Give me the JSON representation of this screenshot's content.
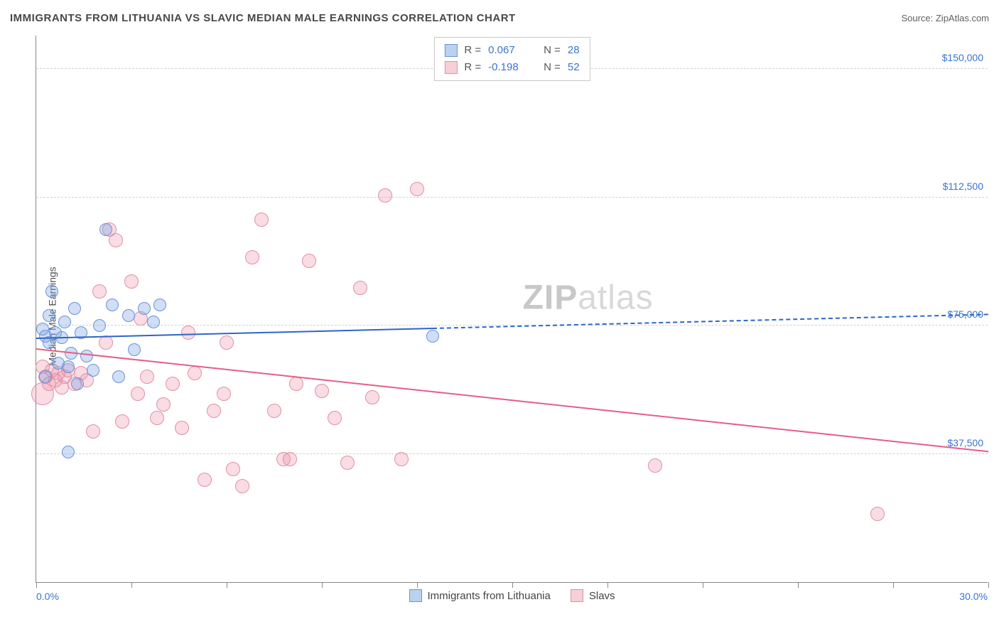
{
  "header": {
    "title": "IMMIGRANTS FROM LITHUANIA VS SLAVIC MEDIAN MALE EARNINGS CORRELATION CHART",
    "source": "Source: ZipAtlas.com"
  },
  "ylabel": "Median Male Earnings",
  "watermark_bold": "ZIP",
  "watermark_rest": "atlas",
  "chart": {
    "type": "scatter",
    "background_color": "#ffffff",
    "grid_color": "#d0d0d0",
    "axis_color": "#888888",
    "tick_label_color": "#3b73d1",
    "x": {
      "min": 0.0,
      "max": 30.0,
      "label_min": "0.0%",
      "label_max": "30.0%",
      "tick_step": 3.0
    },
    "y": {
      "min": 0,
      "max": 160000,
      "gridlines": [
        {
          "value": 37500,
          "label": "$37,500"
        },
        {
          "value": 75000,
          "label": "$75,000"
        },
        {
          "value": 112500,
          "label": "$112,500"
        },
        {
          "value": 150000,
          "label": "$150,000"
        }
      ]
    },
    "series": [
      {
        "id": "lithuania",
        "label": "Immigrants from Lithuania",
        "fill_color": "rgba(120,160,230,0.35)",
        "stroke_color": "#6a93d8",
        "swatch_fill": "#bcd1f0",
        "swatch_border": "#6a93d8",
        "marker_radius": 9,
        "R": "0.067",
        "N": "28",
        "trend": {
          "color": "#2e65c9",
          "width": 2,
          "y_at_xmin": 71000,
          "y_at_xmax": 78000,
          "solid_until_x": 12.5
        },
        "points": [
          {
            "x": 0.2,
            "y": 74000
          },
          {
            "x": 0.3,
            "y": 72000
          },
          {
            "x": 0.4,
            "y": 70000
          },
          {
            "x": 0.4,
            "y": 78000
          },
          {
            "x": 0.5,
            "y": 85000
          },
          {
            "x": 0.6,
            "y": 73000
          },
          {
            "x": 0.7,
            "y": 64000
          },
          {
            "x": 0.8,
            "y": 71500
          },
          {
            "x": 0.9,
            "y": 76000
          },
          {
            "x": 1.0,
            "y": 63000
          },
          {
            "x": 1.1,
            "y": 67000
          },
          {
            "x": 1.2,
            "y": 80000
          },
          {
            "x": 1.3,
            "y": 58000
          },
          {
            "x": 1.4,
            "y": 73000
          },
          {
            "x": 1.6,
            "y": 66000
          },
          {
            "x": 1.8,
            "y": 62000
          },
          {
            "x": 2.0,
            "y": 75000
          },
          {
            "x": 2.2,
            "y": 103000
          },
          {
            "x": 2.4,
            "y": 81000
          },
          {
            "x": 2.6,
            "y": 60000
          },
          {
            "x": 2.9,
            "y": 78000
          },
          {
            "x": 3.1,
            "y": 68000
          },
          {
            "x": 3.4,
            "y": 80000
          },
          {
            "x": 3.7,
            "y": 76000
          },
          {
            "x": 3.9,
            "y": 81000
          },
          {
            "x": 1.0,
            "y": 38000
          },
          {
            "x": 0.3,
            "y": 60000
          },
          {
            "x": 12.5,
            "y": 72000
          }
        ]
      },
      {
        "id": "slavs",
        "label": "Slavs",
        "fill_color": "rgba(235,140,165,0.30)",
        "stroke_color": "#e290a4",
        "swatch_fill": "#f6cfd8",
        "swatch_border": "#e290a4",
        "marker_radius": 10,
        "R": "-0.198",
        "N": "52",
        "trend": {
          "color": "#e75d85",
          "width": 2,
          "y_at_xmin": 68000,
          "y_at_xmax": 38000,
          "solid_until_x": 30.0
        },
        "points": [
          {
            "x": 0.2,
            "y": 63000
          },
          {
            "x": 0.3,
            "y": 60000
          },
          {
            "x": 0.4,
            "y": 58000
          },
          {
            "x": 0.5,
            "y": 62000
          },
          {
            "x": 0.6,
            "y": 59000
          },
          {
            "x": 0.7,
            "y": 61000
          },
          {
            "x": 0.8,
            "y": 57000
          },
          {
            "x": 0.9,
            "y": 60000
          },
          {
            "x": 1.0,
            "y": 62000
          },
          {
            "x": 1.2,
            "y": 58000
          },
          {
            "x": 1.4,
            "y": 61000
          },
          {
            "x": 1.6,
            "y": 59000
          },
          {
            "x": 1.8,
            "y": 44000
          },
          {
            "x": 2.0,
            "y": 85000
          },
          {
            "x": 2.2,
            "y": 70000
          },
          {
            "x": 2.5,
            "y": 100000
          },
          {
            "x": 2.7,
            "y": 47000
          },
          {
            "x": 3.0,
            "y": 88000
          },
          {
            "x": 3.2,
            "y": 55000
          },
          {
            "x": 3.5,
            "y": 60000
          },
          {
            "x": 3.8,
            "y": 48000
          },
          {
            "x": 4.0,
            "y": 52000
          },
          {
            "x": 4.3,
            "y": 58000
          },
          {
            "x": 4.6,
            "y": 45000
          },
          {
            "x": 5.0,
            "y": 61000
          },
          {
            "x": 5.3,
            "y": 30000
          },
          {
            "x": 5.6,
            "y": 50000
          },
          {
            "x": 5.9,
            "y": 55000
          },
          {
            "x": 6.2,
            "y": 33000
          },
          {
            "x": 6.5,
            "y": 28000
          },
          {
            "x": 6.8,
            "y": 95000
          },
          {
            "x": 7.1,
            "y": 106000
          },
          {
            "x": 7.5,
            "y": 50000
          },
          {
            "x": 7.8,
            "y": 36000
          },
          {
            "x": 8.2,
            "y": 58000
          },
          {
            "x": 8.6,
            "y": 94000
          },
          {
            "x": 9.0,
            "y": 56000
          },
          {
            "x": 9.4,
            "y": 48000
          },
          {
            "x": 9.8,
            "y": 35000
          },
          {
            "x": 10.2,
            "y": 86000
          },
          {
            "x": 10.6,
            "y": 54000
          },
          {
            "x": 11.0,
            "y": 113000
          },
          {
            "x": 11.5,
            "y": 36000
          },
          {
            "x": 12.0,
            "y": 115000
          },
          {
            "x": 8.0,
            "y": 36000
          },
          {
            "x": 6.0,
            "y": 70000
          },
          {
            "x": 4.8,
            "y": 73000
          },
          {
            "x": 3.3,
            "y": 77000
          },
          {
            "x": 2.3,
            "y": 103000
          },
          {
            "x": 0.2,
            "y": 55000,
            "r": 16
          },
          {
            "x": 19.5,
            "y": 34000
          },
          {
            "x": 26.5,
            "y": 20000
          }
        ]
      }
    ]
  },
  "legend_top_labels": {
    "R": "R =",
    "N": "N ="
  }
}
